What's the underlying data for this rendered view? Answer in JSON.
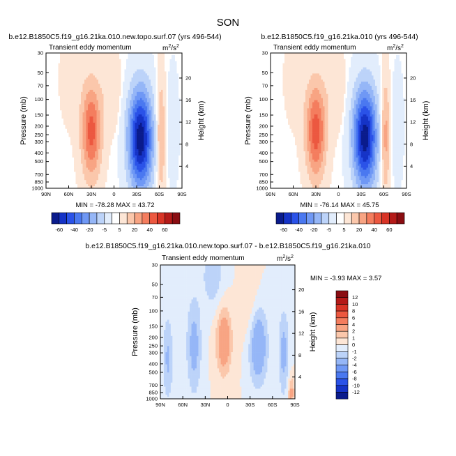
{
  "figure_title": "SON",
  "palettes": {
    "abs": [
      "#0a1b8c",
      "#1533c7",
      "#2a52e8",
      "#4a78f0",
      "#6f98f5",
      "#95b6f7",
      "#bcd3f9",
      "#e2edfc",
      "#ffffff",
      "#fde6d6",
      "#fbc7ab",
      "#f8a483",
      "#f47d5e",
      "#ec5840",
      "#d83426",
      "#b41a18",
      "#8a0d12"
    ],
    "diff": [
      "#0a1b8c",
      "#1533c7",
      "#2a52e8",
      "#4a78f0",
      "#6f98f5",
      "#95b6f7",
      "#bcd3f9",
      "#e2edfc",
      "#fde6d6",
      "#fbc7ab",
      "#f8a483",
      "#f47d5e",
      "#ec5840",
      "#d83426",
      "#b41a18",
      "#8a0d12"
    ]
  },
  "chart_data": [
    {
      "type": "heatmap",
      "title": "b.e12.B1850C5.f19_g16.21ka.010.new.topo.surf.07 (yrs 496-544)",
      "subtitle": "Transient eddy momentum",
      "units_base": "m",
      "units_sup1": "2",
      "units_slash": "/s",
      "units_sup2": "2",
      "ylabel": "Pressure (mb)",
      "ylabel_right": "Height (km)",
      "x_ticks": [
        "90N",
        "60N",
        "30N",
        "0",
        "30S",
        "60S",
        "90S"
      ],
      "y_ticks": [
        "30",
        "50",
        "70",
        "100",
        "150",
        "200",
        "250",
        "300",
        "400",
        "500",
        "700",
        "850",
        "1000"
      ],
      "y_ticks_right": [
        "20",
        "16",
        "12",
        "8",
        "4"
      ],
      "xlim": [
        90,
        -90
      ],
      "ylim_mb": [
        1000,
        30
      ],
      "min_label": "MIN = -78.28  MAX = 43.72",
      "features": [
        {
          "lat": 30,
          "p": 230,
          "amp": 44,
          "wlat": 9,
          "wz": 0.85
        },
        {
          "lat": -35,
          "p": 280,
          "amp": -78,
          "wlat": 11,
          "wz": 0.9
        },
        {
          "lat": -62,
          "p": 260,
          "amp": 24,
          "wlat": 4,
          "wz": 1.0
        },
        {
          "lat": 5,
          "p": 80,
          "amp": 7,
          "wlat": 10,
          "wz": 0.7
        },
        {
          "lat": 55,
          "p": 60,
          "amp": 4,
          "wlat": 12,
          "wz": 0.9
        },
        {
          "lat": -78,
          "p": 200,
          "amp": -4,
          "wlat": 6,
          "wz": 1.2
        }
      ]
    },
    {
      "type": "heatmap",
      "title": "b.e12.B1850C5.f19_g16.21ka.010 (yrs 496-544)",
      "subtitle": "Transient eddy momentum",
      "units_base": "m",
      "units_sup1": "2",
      "units_slash": "/s",
      "units_sup2": "2",
      "ylabel": "Pressure (mb)",
      "ylabel_right": "Height (km)",
      "x_ticks": [
        "90N",
        "60N",
        "30N",
        "0",
        "30S",
        "60S",
        "90S"
      ],
      "y_ticks": [
        "30",
        "50",
        "70",
        "100",
        "150",
        "200",
        "250",
        "300",
        "400",
        "500",
        "700",
        "850",
        "1000"
      ],
      "y_ticks_right": [
        "20",
        "16",
        "12",
        "8",
        "4"
      ],
      "xlim": [
        90,
        -90
      ],
      "ylim_mb": [
        1000,
        30
      ],
      "min_label": "MIN = -76.14  MAX = 45.75",
      "features": [
        {
          "lat": 30,
          "p": 230,
          "amp": 46,
          "wlat": 9,
          "wz": 0.85
        },
        {
          "lat": -35,
          "p": 270,
          "amp": -76,
          "wlat": 11,
          "wz": 0.9
        },
        {
          "lat": -62,
          "p": 260,
          "amp": 26,
          "wlat": 4,
          "wz": 1.0
        },
        {
          "lat": 5,
          "p": 80,
          "amp": 7,
          "wlat": 10,
          "wz": 0.7
        },
        {
          "lat": 55,
          "p": 60,
          "amp": 4,
          "wlat": 12,
          "wz": 0.9
        },
        {
          "lat": -78,
          "p": 200,
          "amp": -4,
          "wlat": 6,
          "wz": 1.2
        }
      ]
    },
    {
      "type": "heatmap",
      "title": "b.e12.B1850C5.f19_g16.21ka.010.new.topo.surf.07 - b.e12.B1850C5.f19_g16.21ka.010",
      "subtitle": "Transient eddy momentum",
      "units_base": "m",
      "units_sup1": "2",
      "units_slash": "/s",
      "units_sup2": "2",
      "ylabel": "Pressure (mb)",
      "ylabel_right": "Height (km)",
      "x_ticks": [
        "90N",
        "60N",
        "30N",
        "0",
        "30S",
        "60S",
        "90S"
      ],
      "y_ticks": [
        "30",
        "50",
        "70",
        "100",
        "150",
        "200",
        "250",
        "300",
        "400",
        "500",
        "700",
        "850",
        "1000"
      ],
      "y_ticks_right": [
        "20",
        "16",
        "12",
        "8",
        "4"
      ],
      "xlim": [
        90,
        -90
      ],
      "ylim_mb": [
        1000,
        30
      ],
      "min_label": "MIN = -3.93  MAX =  3.57",
      "features": [
        {
          "lat": 5,
          "p": 220,
          "amp": 3.6,
          "wlat": 7,
          "wz": 0.6
        },
        {
          "lat": 45,
          "p": 250,
          "amp": -2.6,
          "wlat": 7,
          "wz": 0.9
        },
        {
          "lat": 80,
          "p": 350,
          "amp": -2.2,
          "wlat": 5,
          "wz": 0.8
        },
        {
          "lat": -40,
          "p": 250,
          "amp": -3.9,
          "wlat": 9,
          "wz": 0.7
        },
        {
          "lat": -75,
          "p": 300,
          "amp": -2.5,
          "wlat": 5,
          "wz": 0.8
        },
        {
          "lat": 20,
          "p": 40,
          "amp": -1.8,
          "wlat": 10,
          "wz": 0.6
        },
        {
          "lat": -30,
          "p": 100,
          "amp": 1.2,
          "wlat": 8,
          "wz": 1.0
        },
        {
          "lat": -85,
          "p": 850,
          "amp": 2.5,
          "wlat": 3,
          "wz": 0.3
        }
      ]
    }
  ],
  "colorbars": {
    "abs": {
      "levels": [
        -70,
        -60,
        -50,
        -40,
        -30,
        -20,
        -10,
        -5,
        0,
        5,
        10,
        20,
        30,
        40,
        50,
        60,
        70
      ],
      "labels": [
        "-60",
        "-40",
        "-20",
        "-5",
        "5",
        "20",
        "40",
        "60"
      ]
    },
    "diff": {
      "levels": [
        -12,
        -10,
        -8,
        -6,
        -4,
        -2,
        -1,
        0,
        1,
        2,
        4,
        6,
        8,
        10,
        12
      ],
      "labels": [
        "12",
        "10",
        "8",
        "6",
        "4",
        "2",
        "1",
        "0",
        "-1",
        "-2",
        "-4",
        "-6",
        "-8",
        "-10",
        "-12"
      ]
    }
  }
}
